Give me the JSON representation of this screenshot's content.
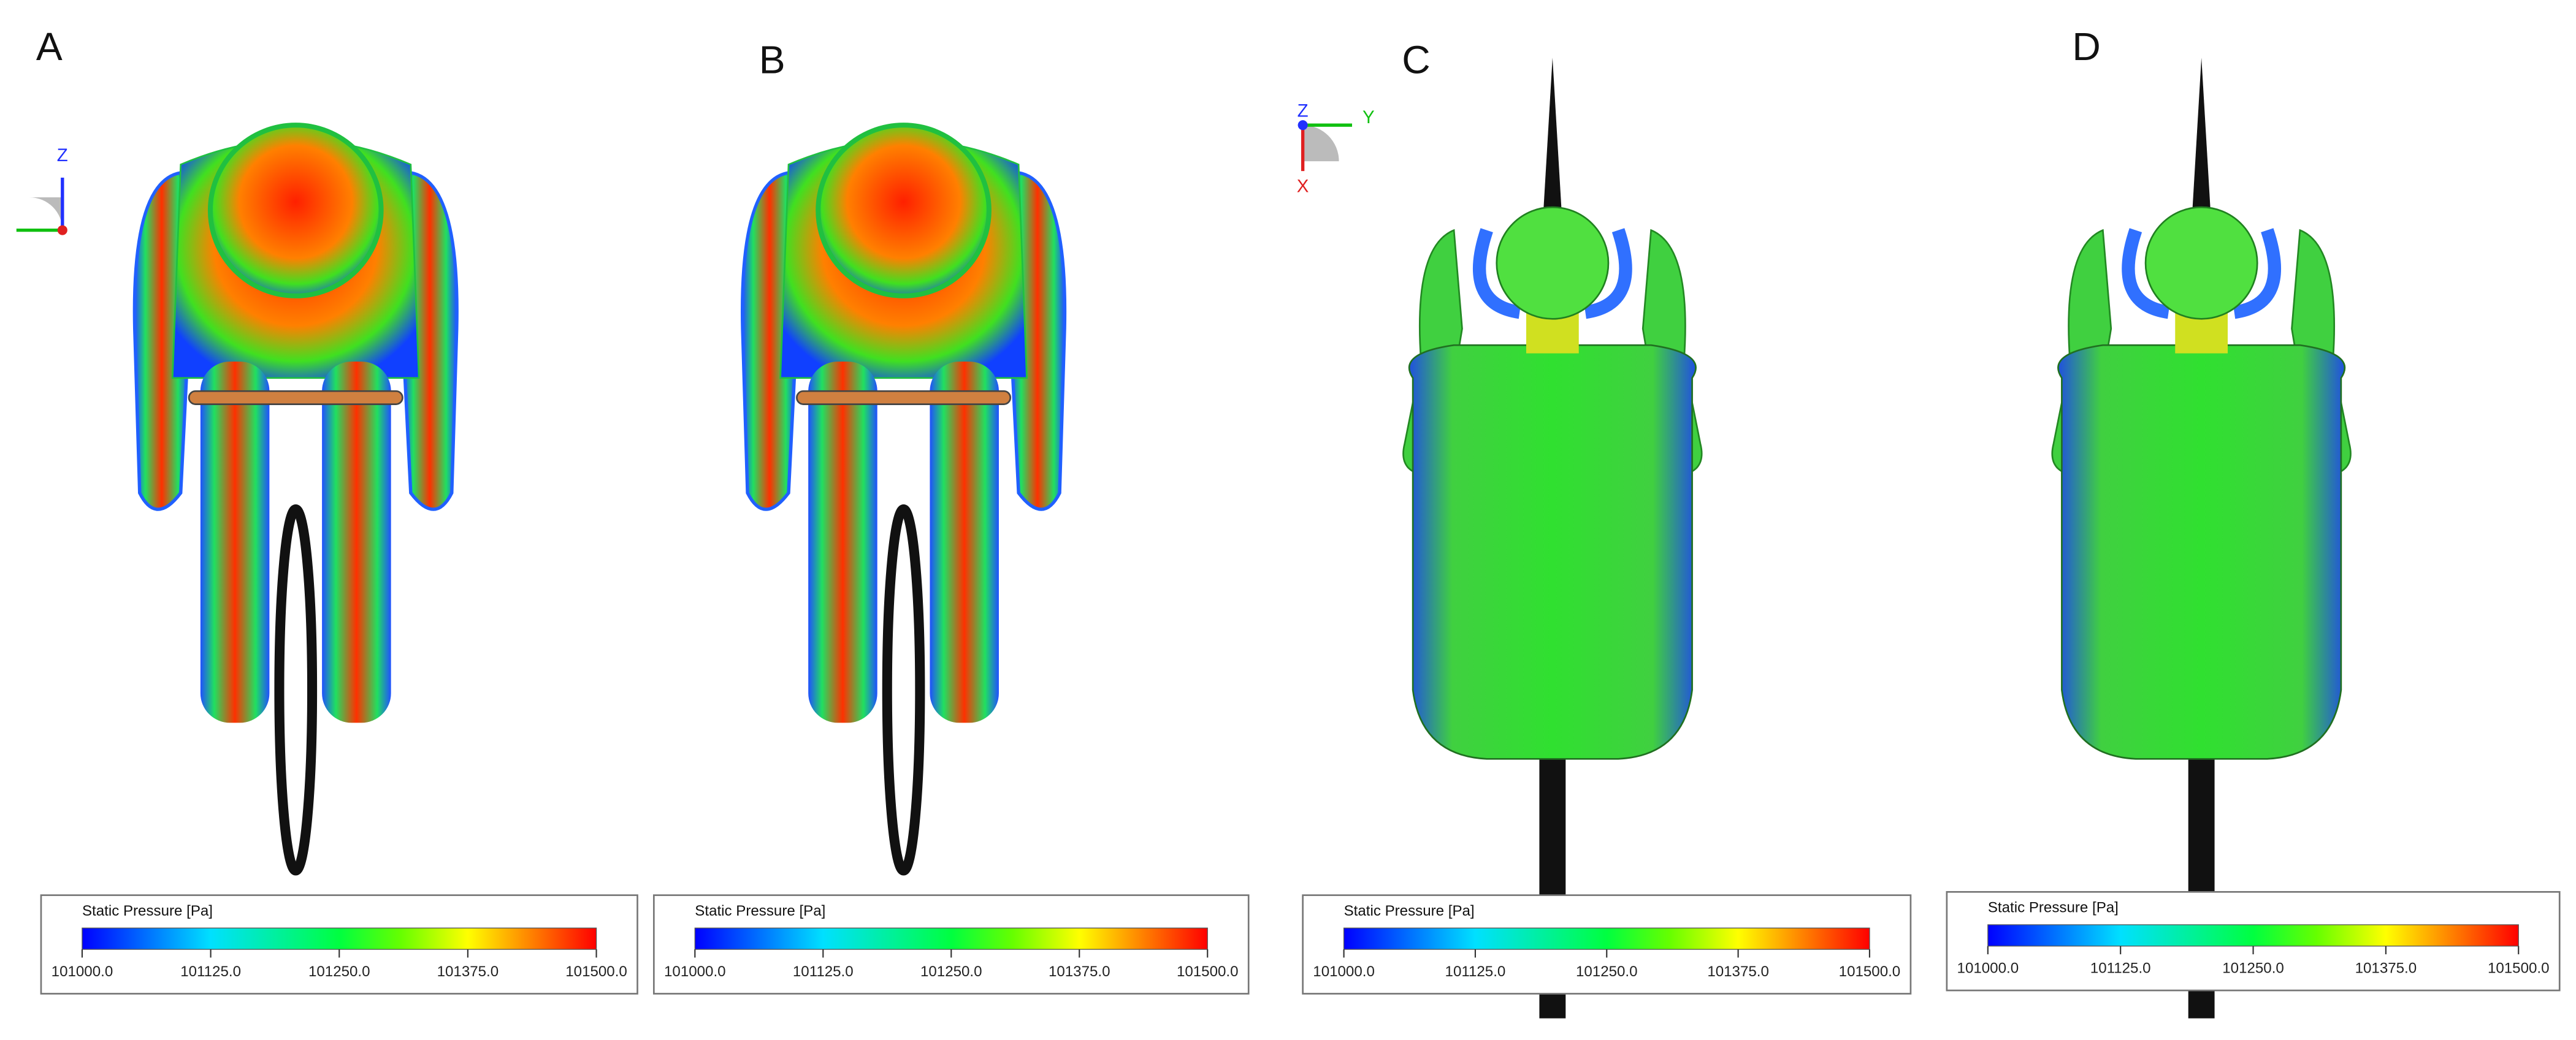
{
  "panels": [
    {
      "label": "A",
      "legend": {
        "title": "Static Pressure [Pa]",
        "ticks": [
          "101000.0",
          "101125.0",
          "101250.0",
          "101375.0",
          "101500.0"
        ]
      }
    },
    {
      "label": "B",
      "legend": {
        "title": "Static Pressure [Pa]",
        "ticks": [
          "101000.0",
          "101125.0",
          "101250.0",
          "101375.0",
          "101500.0"
        ]
      }
    },
    {
      "label": "C",
      "legend": {
        "title": "Static Pressure [Pa]",
        "ticks": [
          "101000.0",
          "101125.0",
          "101250.0",
          "101375.0",
          "101500.0"
        ]
      }
    },
    {
      "label": "D",
      "legend": {
        "title": "Static Pressure [Pa]",
        "ticks": [
          "101000.0",
          "101125.0",
          "101250.0",
          "101375.0",
          "101500.0"
        ]
      }
    }
  ],
  "axis_triads": [
    {
      "labels": [
        "Z"
      ]
    },
    {
      "labels": [
        "Z",
        "Y",
        "X"
      ]
    }
  ]
}
